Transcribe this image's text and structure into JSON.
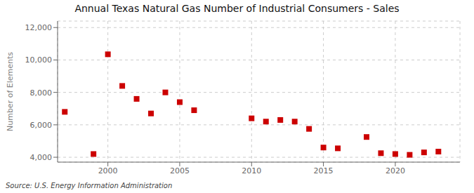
{
  "chart_data": {
    "type": "scatter",
    "title": "Annual Texas Natural Gas Number of Industrial Consumers - Sales",
    "y_label": "Number of Elements",
    "source": "Source: U.S. Energy Information Administration",
    "x": [
      1997,
      1999,
      2000,
      2001,
      2002,
      2003,
      2004,
      2005,
      2006,
      2010,
      2011,
      2012,
      2013,
      2014,
      2015,
      2016,
      2018,
      2019,
      2020,
      2021,
      2022,
      2023
    ],
    "values": [
      6800,
      4200,
      10350,
      8400,
      7600,
      6700,
      8000,
      7400,
      6900,
      6400,
      6200,
      6300,
      6200,
      5750,
      4600,
      4550,
      5250,
      4250,
      4200,
      4150,
      4300,
      4350
    ],
    "color": "#cc0000",
    "marker": "square",
    "xlim": [
      1996.5,
      2024.5
    ],
    "ylim": [
      3700,
      12400
    ],
    "xticks": [
      2000,
      2005,
      2010,
      2015,
      2020
    ],
    "yticks": [
      {
        "value": 4000,
        "label": "4,000"
      },
      {
        "value": 6000,
        "label": "6,000"
      },
      {
        "value": 8000,
        "label": "8,000"
      },
      {
        "value": 10000,
        "label": "10,000"
      },
      {
        "value": 12000,
        "label": "12,000"
      }
    ],
    "grid": true
  }
}
